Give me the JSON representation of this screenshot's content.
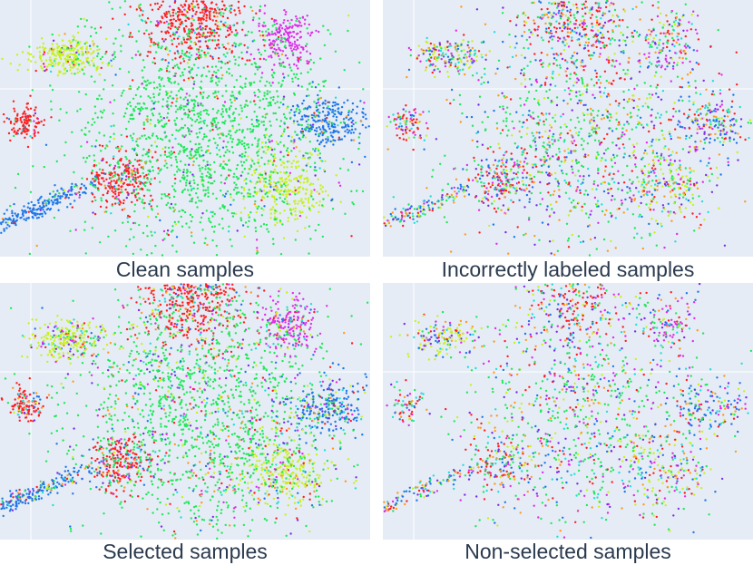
{
  "colors": {
    "plot_background": "#e5ecf6",
    "class_palette": [
      "#ff1f1f",
      "#1f77e8",
      "#22e85a",
      "#e02ee8",
      "#c8f21c",
      "#1fe0d8",
      "#7d2ee8",
      "#ff9a1f"
    ]
  },
  "chart_data": [
    {
      "type": "scatter",
      "title": "Clean samples",
      "grid": true,
      "legend": "none",
      "classes": 8,
      "density": 1.0,
      "mix": 0.15,
      "clusters": [
        {
          "name": "upper-left arm",
          "x": -0.7,
          "y": 0.62,
          "class": 4
        },
        {
          "name": "top",
          "x": 0.05,
          "y": 0.95,
          "class": 0
        },
        {
          "name": "left",
          "x": -0.95,
          "y": 0.05,
          "class": 0
        },
        {
          "name": "lower-left tail",
          "x": -0.9,
          "y": -0.7,
          "class": 1
        },
        {
          "name": "lower-left blob",
          "x": -0.38,
          "y": -0.45,
          "class": 0
        },
        {
          "name": "right",
          "x": 0.85,
          "y": 0.05,
          "class": 1
        },
        {
          "name": "upper-right",
          "x": 0.6,
          "y": 0.75,
          "class": 3
        },
        {
          "name": "lower-right",
          "x": 0.6,
          "y": -0.5,
          "class": 4
        },
        {
          "name": "center",
          "x": 0.1,
          "y": 0.0,
          "class": 2
        }
      ]
    },
    {
      "type": "scatter",
      "title": "Incorrectly labeled samples",
      "grid": true,
      "legend": "none",
      "classes": 8,
      "density": 0.7,
      "mix": 0.8,
      "clusters": [
        {
          "name": "upper-left arm",
          "x": -0.7,
          "y": 0.62,
          "class": 4
        },
        {
          "name": "top",
          "x": 0.05,
          "y": 0.95,
          "class": 0
        },
        {
          "name": "left",
          "x": -0.95,
          "y": 0.05,
          "class": 0
        },
        {
          "name": "lower-left tail",
          "x": -0.9,
          "y": -0.7,
          "class": 1
        },
        {
          "name": "lower-left blob",
          "x": -0.38,
          "y": -0.45,
          "class": 0
        },
        {
          "name": "right",
          "x": 0.85,
          "y": 0.05,
          "class": 1
        },
        {
          "name": "upper-right",
          "x": 0.6,
          "y": 0.75,
          "class": 3
        },
        {
          "name": "lower-right",
          "x": 0.6,
          "y": -0.5,
          "class": 4
        },
        {
          "name": "center",
          "x": 0.1,
          "y": 0.0,
          "class": 2
        }
      ]
    },
    {
      "type": "scatter",
      "title": "Selected samples",
      "grid": true,
      "legend": "none",
      "classes": 8,
      "density": 1.0,
      "mix": 0.35,
      "clusters": [
        {
          "name": "upper-left arm",
          "x": -0.7,
          "y": 0.62,
          "class": 4
        },
        {
          "name": "top",
          "x": 0.05,
          "y": 0.95,
          "class": 0
        },
        {
          "name": "left",
          "x": -0.95,
          "y": 0.05,
          "class": 0
        },
        {
          "name": "lower-left tail",
          "x": -0.9,
          "y": -0.7,
          "class": 1
        },
        {
          "name": "lower-left blob",
          "x": -0.38,
          "y": -0.45,
          "class": 0
        },
        {
          "name": "right",
          "x": 0.85,
          "y": 0.05,
          "class": 1
        },
        {
          "name": "upper-right",
          "x": 0.6,
          "y": 0.75,
          "class": 3
        },
        {
          "name": "lower-right",
          "x": 0.6,
          "y": -0.5,
          "class": 4
        },
        {
          "name": "center",
          "x": 0.1,
          "y": 0.0,
          "class": 2
        }
      ]
    },
    {
      "type": "scatter",
      "title": "Non-selected samples",
      "grid": true,
      "legend": "none",
      "classes": 8,
      "density": 0.55,
      "mix": 0.75,
      "clusters": [
        {
          "name": "upper-left arm",
          "x": -0.7,
          "y": 0.62,
          "class": 4
        },
        {
          "name": "top",
          "x": 0.05,
          "y": 0.95,
          "class": 0
        },
        {
          "name": "left",
          "x": -0.95,
          "y": 0.05,
          "class": 0
        },
        {
          "name": "lower-left tail",
          "x": -0.9,
          "y": -0.7,
          "class": 1
        },
        {
          "name": "lower-left blob",
          "x": -0.38,
          "y": -0.45,
          "class": 0
        },
        {
          "name": "right",
          "x": 0.85,
          "y": 0.05,
          "class": 1
        },
        {
          "name": "upper-right",
          "x": 0.6,
          "y": 0.75,
          "class": 3
        },
        {
          "name": "lower-right",
          "x": 0.6,
          "y": -0.5,
          "class": 4
        },
        {
          "name": "center",
          "x": 0.1,
          "y": 0.0,
          "class": 2
        }
      ]
    }
  ]
}
